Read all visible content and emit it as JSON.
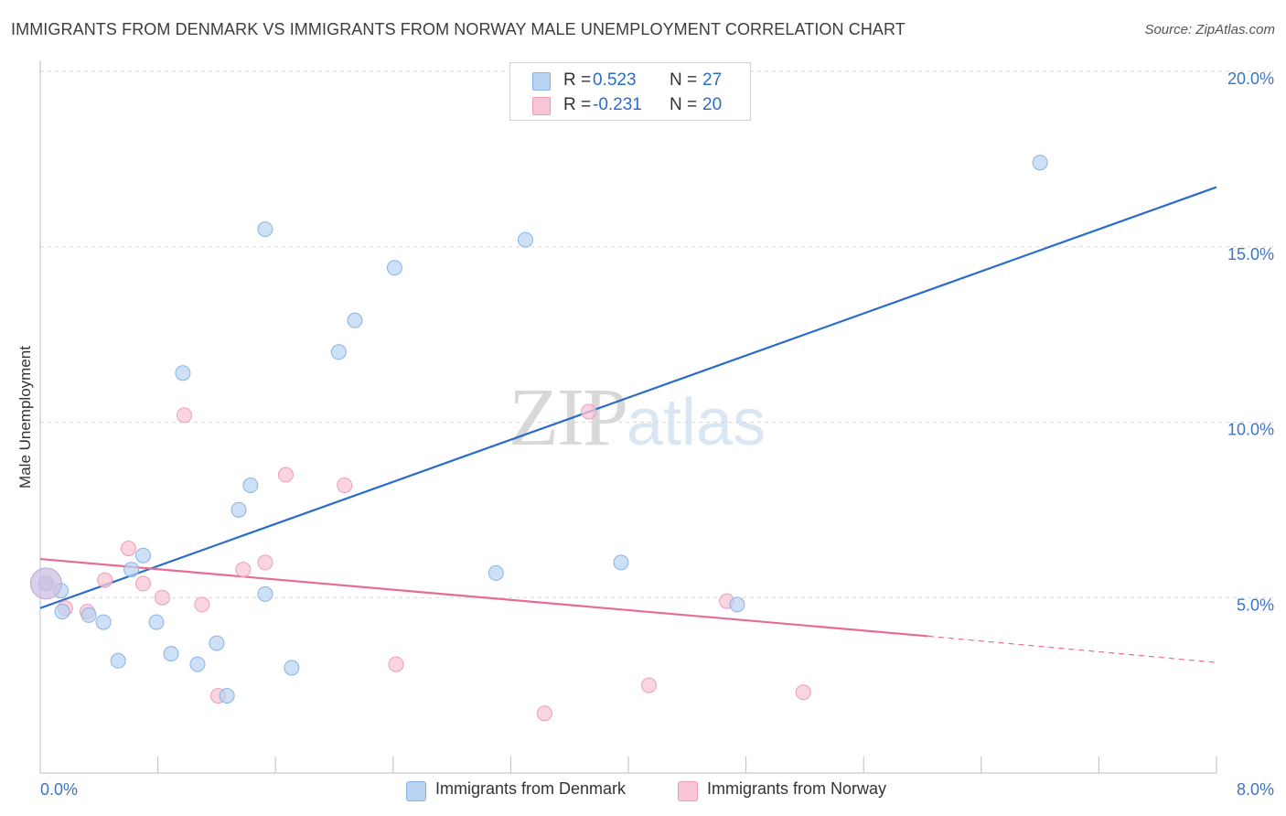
{
  "title": "IMMIGRANTS FROM DENMARK VS IMMIGRANTS FROM NORWAY MALE UNEMPLOYMENT CORRELATION CHART",
  "source": "Source: ZipAtlas.com",
  "watermark": {
    "zip": "ZIP",
    "atlas": "atlas"
  },
  "legend": {
    "r_label": "R =",
    "n_label": "N =",
    "rows": [
      {
        "r": "0.523",
        "n": "27"
      },
      {
        "r": "-0.231",
        "n": "20"
      }
    ]
  },
  "colors": {
    "denmark_fill": "#b9d3f2",
    "denmark_stroke": "#8ab2e6",
    "denmark_line": "#2a6cc9",
    "norway_fill": "#f8c6d6",
    "norway_stroke": "#ee9db7",
    "norway_line": "#e66b97",
    "axis_text": "#3b75c4",
    "grid": "#d9d9d9"
  },
  "chart_data": {
    "type": "scatter",
    "title": "IMMIGRANTS FROM DENMARK VS IMMIGRANTS FROM NORWAY MALE UNEMPLOYMENT CORRELATION CHART",
    "xlabel": "",
    "ylabel": "Male Unemployment",
    "xlim": [
      0,
      8
    ],
    "ylim": [
      0,
      20
    ],
    "x_tick_labels": [
      "0.0%",
      "8.0%"
    ],
    "y_ticks": [
      5,
      10,
      15,
      20
    ],
    "y_tick_labels": [
      "5.0%",
      "10.0%",
      "15.0%",
      "20.0%"
    ],
    "grid": "horizontal dashed",
    "legend_position": "top-center",
    "series": [
      {
        "name": "Immigrants from Denmark",
        "points": [
          [
            0.04,
            5.4
          ],
          [
            0.14,
            5.2
          ],
          [
            0.15,
            4.6
          ],
          [
            0.33,
            4.5
          ],
          [
            0.43,
            4.3
          ],
          [
            0.53,
            3.2
          ],
          [
            0.62,
            5.8
          ],
          [
            0.7,
            6.2
          ],
          [
            0.79,
            4.3
          ],
          [
            0.89,
            3.4
          ],
          [
            0.97,
            11.4
          ],
          [
            1.07,
            3.1
          ],
          [
            1.2,
            3.7
          ],
          [
            1.27,
            2.2
          ],
          [
            1.35,
            7.5
          ],
          [
            1.43,
            8.2
          ],
          [
            1.53,
            15.5
          ],
          [
            1.53,
            5.1
          ],
          [
            1.71,
            3.0
          ],
          [
            2.03,
            12.0
          ],
          [
            2.14,
            12.9
          ],
          [
            2.41,
            14.4
          ],
          [
            3.1,
            5.7
          ],
          [
            3.3,
            15.2
          ],
          [
            3.95,
            6.0
          ],
          [
            4.74,
            4.8
          ],
          [
            6.8,
            17.4
          ]
        ],
        "trend": {
          "x": [
            0,
            8
          ],
          "y": [
            4.7,
            16.7
          ]
        }
      },
      {
        "name": "Immigrants from Norway",
        "points": [
          [
            0.04,
            5.4
          ],
          [
            0.17,
            4.7
          ],
          [
            0.32,
            4.6
          ],
          [
            0.44,
            5.5
          ],
          [
            0.6,
            6.4
          ],
          [
            0.7,
            5.4
          ],
          [
            0.83,
            5.0
          ],
          [
            0.98,
            10.2
          ],
          [
            1.1,
            4.8
          ],
          [
            1.21,
            2.2
          ],
          [
            1.38,
            5.8
          ],
          [
            1.53,
            6.0
          ],
          [
            1.67,
            8.5
          ],
          [
            2.07,
            8.2
          ],
          [
            2.42,
            3.1
          ],
          [
            3.43,
            1.7
          ],
          [
            3.73,
            10.3
          ],
          [
            4.14,
            2.5
          ],
          [
            4.67,
            4.9
          ],
          [
            5.19,
            2.3
          ]
        ],
        "trend": {
          "x": [
            0,
            6.04
          ],
          "y": [
            6.1,
            3.9
          ],
          "extended": {
            "x": [
              6.04,
              8
            ],
            "y": [
              3.9,
              3.15
            ]
          }
        }
      }
    ]
  },
  "bottom_legend": [
    {
      "label": "Immigrants from Denmark"
    },
    {
      "label": "Immigrants from Norway"
    }
  ]
}
